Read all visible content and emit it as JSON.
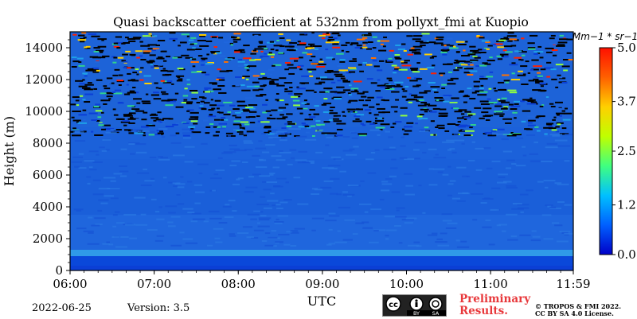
{
  "colors": {
    "low": "#0030d0",
    "mid": "#1f6fe0",
    "high": "#ff2000",
    "frame": "#000000",
    "prelim": "#e8383b"
  },
  "chart_data": {
    "type": "heatmap",
    "title": "Quasi backscatter coefficient at 532nm from pollyxt_fmi at Kuopio",
    "xlabel": "UTC",
    "ylabel": "Height (m)",
    "x_ticks": [
      "06:00",
      "07:00",
      "08:00",
      "09:00",
      "10:00",
      "11:00",
      "11:59"
    ],
    "x_range": [
      "06:00",
      "11:59"
    ],
    "y_ticks": [
      0,
      2000,
      4000,
      6000,
      8000,
      10000,
      12000,
      14000
    ],
    "y_range": [
      0,
      15000
    ],
    "colorbar": {
      "unit_label": "Mm−1 * sr−1",
      "ticks": [
        "0.0",
        "1.2",
        "2.5",
        "3.7",
        "5.0"
      ],
      "range": [
        0,
        5
      ],
      "colormap": [
        "#0000c8",
        "#0060ff",
        "#00c0ff",
        "#40ff80",
        "#c0ff00",
        "#ffd000",
        "#ff6000",
        "#ff1000"
      ]
    },
    "grid": false
  },
  "footer": {
    "date": "2022-06-25",
    "version": "Version: 3.5",
    "license_badge": [
      "BY",
      "SA"
    ],
    "preliminary": [
      "Preliminary",
      "Results."
    ],
    "copyright": [
      "© TROPOS & FMI 2022.",
      "CC BY SA 4.0 License."
    ]
  }
}
